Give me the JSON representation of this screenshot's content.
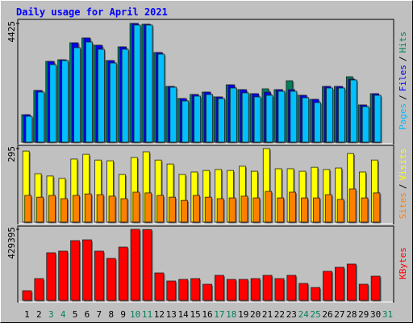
{
  "chart_data": [
    {
      "type": "bar",
      "title": "Daily usage for April 2021",
      "legend_separator": "/",
      "ylim": [
        0,
        4425
      ],
      "yticks": [
        4425
      ],
      "series": [
        {
          "name": "Hits",
          "color": "#00805c",
          "values": [
            1023,
            1926,
            3010,
            3070,
            3702,
            3883,
            3612,
            3040,
            3552,
            4425,
            4395,
            3341,
            2077,
            1625,
            1776,
            1866,
            1686,
            2137,
            1957,
            1806,
            1987,
            1957,
            2288,
            1746,
            1595,
            2077,
            2077,
            2438,
            1385,
            1806,
            null
          ]
        },
        {
          "name": "Files",
          "color": "#0000ff",
          "values": [
            1023,
            1926,
            3010,
            3070,
            3702,
            3883,
            3612,
            3040,
            3552,
            4425,
            4395,
            3341,
            2077,
            1625,
            1776,
            1866,
            1686,
            2137,
            1957,
            1806,
            1866,
            1957,
            1957,
            1746,
            1595,
            2077,
            2077,
            2348,
            1385,
            1806,
            null
          ]
        },
        {
          "name": "Pages",
          "color": "#00c0ff",
          "values": [
            963,
            1866,
            2890,
            3040,
            3522,
            3732,
            3462,
            2950,
            3462,
            4365,
            4365,
            3281,
            2047,
            1535,
            1716,
            1776,
            1625,
            2017,
            1836,
            1686,
            1746,
            1896,
            1896,
            1656,
            1475,
            2017,
            2017,
            2318,
            1324,
            1746,
            null
          ]
        }
      ]
    },
    {
      "type": "bar",
      "legend_separator": "/",
      "ylim": [
        0,
        295
      ],
      "yticks": [
        295
      ],
      "series": [
        {
          "name": "Visits",
          "color": "#ffff00",
          "values": [
            285,
            194,
            185,
            175,
            253,
            272,
            249,
            246,
            191,
            259,
            282,
            249,
            233,
            191,
            201,
            207,
            211,
            207,
            224,
            204,
            295,
            214,
            214,
            204,
            220,
            211,
            217,
            275,
            201,
            249,
            null
          ]
        },
        {
          "name": "Sites",
          "color": "#ff8000",
          "values": [
            107,
            100,
            107,
            94,
            107,
            113,
            110,
            104,
            94,
            120,
            117,
            107,
            100,
            87,
            107,
            100,
            94,
            97,
            104,
            97,
            123,
            97,
            120,
            97,
            97,
            110,
            91,
            133,
            97,
            117,
            null
          ]
        }
      ]
    },
    {
      "type": "bar",
      "ylim": [
        0,
        429395
      ],
      "yticks": [
        429395
      ],
      "categories": [
        "1",
        "2",
        "3",
        "4",
        "5",
        "6",
        "7",
        "8",
        "9",
        "10",
        "11",
        "12",
        "13",
        "14",
        "15",
        "16",
        "17",
        "18",
        "19",
        "20",
        "21",
        "22",
        "23",
        "24",
        "25",
        "26",
        "27",
        "28",
        "29",
        "30",
        "31"
      ],
      "category_colors": [
        "#000000",
        "#000000",
        "#00805c",
        "#00805c",
        "#000000",
        "#000000",
        "#000000",
        "#000000",
        "#000000",
        "#00805c",
        "#00805c",
        "#000000",
        "#000000",
        "#000000",
        "#000000",
        "#000000",
        "#00805c",
        "#00805c",
        "#000000",
        "#000000",
        "#000000",
        "#000000",
        "#000000",
        "#00805c",
        "#00805c",
        "#000000",
        "#000000",
        "#000000",
        "#000000",
        "#000000",
        "#00805c"
      ],
      "series": [
        {
          "name": "KBytes",
          "color": "#ff0000",
          "values": [
            58560,
            131760,
            287920,
            297680,
            361120,
            366000,
            297680,
            253760,
            322080,
            429395,
            428000,
            165920,
            117120,
            126880,
            131760,
            97600,
            151280,
            126880,
            126880,
            131760,
            151280,
            131760,
            151280,
            102480,
            78080,
            175680,
            200080,
            219600,
            97600,
            146400,
            null
          ]
        }
      ]
    }
  ]
}
